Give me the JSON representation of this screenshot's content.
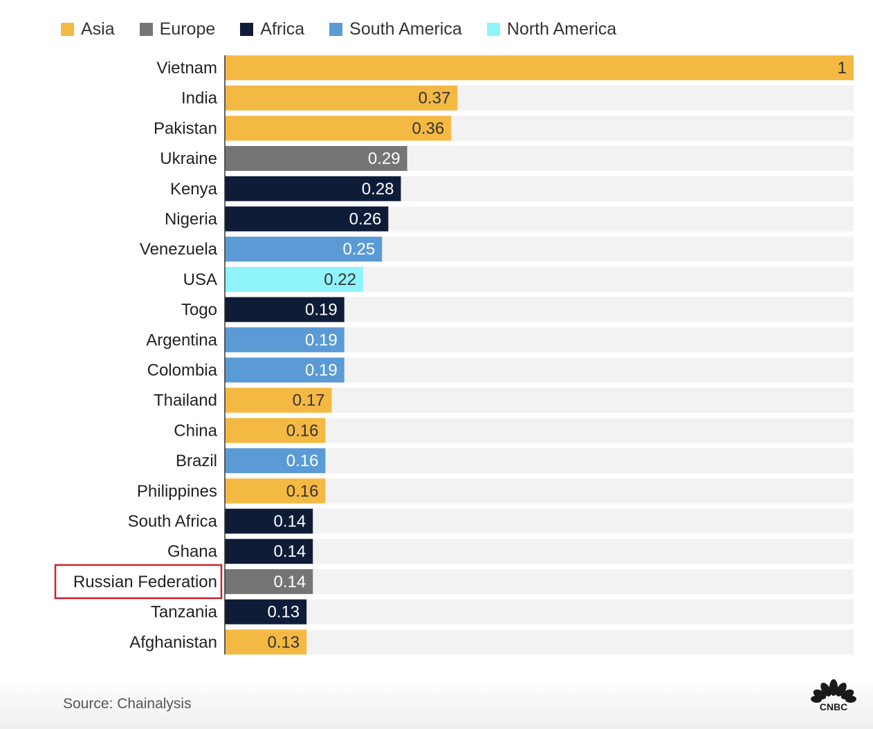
{
  "legend": [
    {
      "name": "Asia",
      "color": "#f4b942"
    },
    {
      "name": "Europe",
      "color": "#757575"
    },
    {
      "name": "Africa",
      "color": "#0e1c38"
    },
    {
      "name": "South America",
      "color": "#5b9bd5"
    },
    {
      "name": "North America",
      "color": "#8ff4fb"
    }
  ],
  "chart_data": {
    "type": "bar",
    "orientation": "horizontal",
    "xlim": [
      0,
      1
    ],
    "grid": false,
    "legend_position": "top",
    "highlighted_category": "Russian Federation",
    "bars": [
      {
        "category": "Vietnam",
        "value": 1,
        "label": "1",
        "region": "Asia"
      },
      {
        "category": "India",
        "value": 0.37,
        "label": "0.37",
        "region": "Asia"
      },
      {
        "category": "Pakistan",
        "value": 0.36,
        "label": "0.36",
        "region": "Asia"
      },
      {
        "category": "Ukraine",
        "value": 0.29,
        "label": "0.29",
        "region": "Europe"
      },
      {
        "category": "Kenya",
        "value": 0.28,
        "label": "0.28",
        "region": "Africa"
      },
      {
        "category": "Nigeria",
        "value": 0.26,
        "label": "0.26",
        "region": "Africa"
      },
      {
        "category": "Venezuela",
        "value": 0.25,
        "label": "0.25",
        "region": "South America"
      },
      {
        "category": "USA",
        "value": 0.22,
        "label": "0.22",
        "region": "North America"
      },
      {
        "category": "Togo",
        "value": 0.19,
        "label": "0.19",
        "region": "Africa"
      },
      {
        "category": "Argentina",
        "value": 0.19,
        "label": "0.19",
        "region": "South America"
      },
      {
        "category": "Colombia",
        "value": 0.19,
        "label": "0.19",
        "region": "South America"
      },
      {
        "category": "Thailand",
        "value": 0.17,
        "label": "0.17",
        "region": "Asia"
      },
      {
        "category": "China",
        "value": 0.16,
        "label": "0.16",
        "region": "Asia"
      },
      {
        "category": "Brazil",
        "value": 0.16,
        "label": "0.16",
        "region": "South America"
      },
      {
        "category": "Philippines",
        "value": 0.16,
        "label": "0.16",
        "region": "Asia"
      },
      {
        "category": "South Africa",
        "value": 0.14,
        "label": "0.14",
        "region": "Africa"
      },
      {
        "category": "Ghana",
        "value": 0.14,
        "label": "0.14",
        "region": "Africa"
      },
      {
        "category": "Russian Federation",
        "value": 0.14,
        "label": "0.14",
        "region": "Europe"
      },
      {
        "category": "Tanzania",
        "value": 0.13,
        "label": "0.13",
        "region": "Africa"
      },
      {
        "category": "Afghanistan",
        "value": 0.13,
        "label": "0.13",
        "region": "Asia"
      }
    ]
  },
  "colors": {
    "track": "#f2f2f2",
    "axis": "#333333",
    "highlight_box": "#d0202e",
    "value_text_dark": "#333333",
    "value_text_light": "#ffffff"
  },
  "footer": {
    "source": "Source: Chainalysis",
    "logo_text": "CNBC",
    "logo": "cnbc-peacock-logo"
  }
}
